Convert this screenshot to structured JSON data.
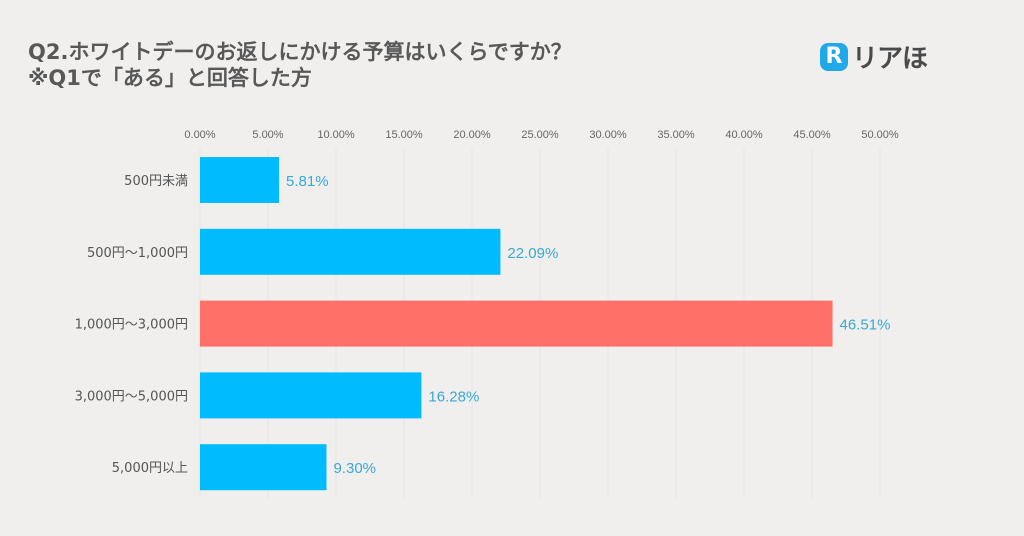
{
  "header": {
    "title_line1": "Q2.ホワイトデーのお返しにかける予算はいくらですか？",
    "title_line2": "※Q1で「ある」と回答した方"
  },
  "logo": {
    "mark": "R",
    "text": "リアほ"
  },
  "colors": {
    "bar": "#00bcff",
    "highlight": "#ff7068",
    "label": "#3aa8d4",
    "tick": "#666666",
    "category": "#555555",
    "grid": "#e6e6e6"
  },
  "chart_data": {
    "type": "bar",
    "orientation": "horizontal",
    "title": "Q2.ホワイトデーのお返しにかける予算はいくらですか？",
    "subtitle": "※Q1で「ある」と回答した方",
    "categories": [
      "500円未満",
      "500円～1,000円",
      "1,000円～3,000円",
      "3,000円～5,000円",
      "5,000円以上"
    ],
    "values": [
      5.81,
      22.09,
      46.51,
      16.28,
      9.3
    ],
    "value_labels": [
      "5.81%",
      "22.09%",
      "46.51%",
      "16.28%",
      "9.30%"
    ],
    "highlight_index": 2,
    "xlim": [
      0,
      50
    ],
    "ticks": [
      0,
      5,
      10,
      15,
      20,
      25,
      30,
      35,
      40,
      45,
      50
    ],
    "tick_labels": [
      "0.00%",
      "5.00%",
      "10.00%",
      "15.00%",
      "20.00%",
      "25.00%",
      "30.00%",
      "35.00%",
      "40.00%",
      "45.00%",
      "50.00%"
    ],
    "axis_position": "top",
    "grid": true,
    "legend": "none"
  }
}
